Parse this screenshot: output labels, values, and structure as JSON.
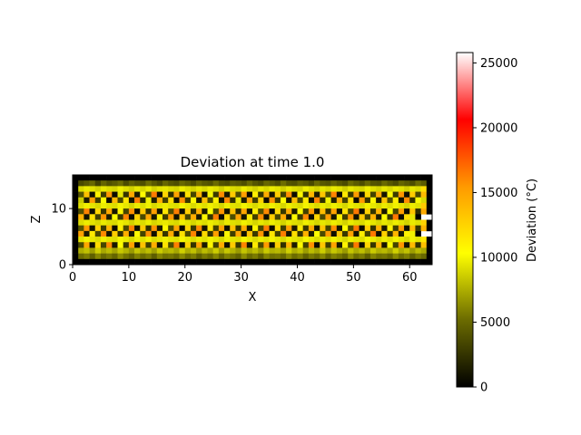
{
  "chart_data": {
    "type": "heatmap",
    "title": "Deviation at time 1.0",
    "xlabel": "X",
    "ylabel": "Z",
    "colorbar_label": "Deviation (°C)",
    "colormap": "hot",
    "colormap_stops": [
      "#000000",
      "#6b6b00",
      "#ffff00",
      "#ff9900",
      "#ff0000",
      "#ffffff"
    ],
    "xlim": [
      0,
      64
    ],
    "ylim": [
      0,
      16
    ],
    "xticks": [
      0,
      10,
      20,
      30,
      40,
      50,
      60
    ],
    "yticks": [
      0,
      10
    ],
    "color_range": [
      0,
      25800
    ],
    "colorbar_ticks": [
      0,
      5000,
      10000,
      15000,
      20000,
      25000
    ],
    "grid_size": {
      "nx": 64,
      "nz": 16
    },
    "border_value": 0,
    "pattern": "checkerboard deviation, high values (~8000–17000) alternating with near-zero cells in the interior",
    "values": [
      [
        0,
        0,
        0,
        0,
        0,
        0,
        0,
        0,
        0,
        0,
        0,
        0,
        0,
        0,
        0,
        0,
        0,
        0,
        0,
        0,
        0,
        0,
        0,
        0,
        0,
        0,
        0,
        0,
        0,
        0,
        0,
        0,
        0,
        0,
        0,
        0,
        0,
        0,
        0,
        0,
        0,
        0,
        0,
        0,
        0,
        0,
        0,
        0,
        0,
        0,
        0,
        0,
        0,
        0,
        0,
        0,
        0,
        0,
        0,
        0,
        0,
        0,
        0,
        0
      ],
      [
        0,
        3500,
        4200,
        5000,
        3200,
        4800,
        3900,
        4400,
        5100,
        3600,
        4700,
        4000,
        3800,
        5200,
        4300,
        3500,
        4900,
        4100,
        3700,
        5000,
        4400,
        3600,
        4800,
        4200,
        3900,
        5100,
        4000,
        3700,
        4600,
        4300,
        3800,
        5000,
        4100,
        3600,
        4900,
        4400,
        3700,
        5200,
        4000,
        3800,
        4700,
        4300,
        3500,
        5000,
        4200,
        3900,
        4800,
        4100,
        3600,
        5100,
        4400,
        3700,
        4900,
        4000,
        3800,
        5000,
        4200,
        3600,
        4800,
        4300,
        3700,
        5100,
        4400,
        0
      ],
      [
        0,
        9000,
        9600,
        9300,
        8800,
        9500,
        9100,
        8900,
        9700,
        9200,
        8700,
        9400,
        9000,
        9600,
        8800,
        9300,
        9500,
        9100,
        8900,
        9700,
        9200,
        8800,
        9400,
        9000,
        9600,
        9300,
        8700,
        9500,
        9100,
        8900,
        9700,
        9200,
        8800,
        9400,
        9000,
        9600,
        9300,
        8700,
        9500,
        9100,
        8900,
        9700,
        9200,
        8800,
        9400,
        9000,
        9600,
        9300,
        8700,
        9500,
        9100,
        8900,
        9700,
        9200,
        8800,
        9400,
        9000,
        9600,
        9300,
        8700,
        9500,
        9100,
        12000,
        0
      ],
      [
        0,
        4200,
        13500,
        800,
        11000,
        3000,
        15500,
        600,
        9500,
        2500,
        14800,
        1200,
        10500,
        3800,
        16500,
        500,
        12500,
        2200,
        15000,
        900,
        11800,
        3400,
        14200,
        700,
        10000,
        2800,
        16000,
        1100,
        13000,
        3600,
        15200,
        400,
        11200,
        2600,
        14500,
        1000,
        12800,
        3200,
        15800,
        600,
        10800,
        2400,
        14000,
        1300,
        13200,
        3900,
        16200,
        500,
        11500,
        2700,
        15400,
        800,
        12200,
        3300,
        14600,
        1000,
        10600,
        2900,
        15600,
        700,
        12900,
        3500,
        13800,
        0
      ],
      [
        0,
        8500,
        1200,
        15200,
        2800,
        10200,
        400,
        13800,
        3400,
        11600,
        900,
        16400,
        2100,
        9800,
        1500,
        14400,
        3100,
        12200,
        600,
        15800,
        2600,
        10600,
        1100,
        13400,
        3700,
        11000,
        800,
        16000,
        2300,
        9600,
        1400,
        14800,
        3000,
        12600,
        500,
        15600,
        2700,
        10400,
        1000,
        13600,
        3500,
        11400,
        700,
        16200,
        2200,
        9900,
        1600,
        14200,
        3200,
        12000,
        400,
        15400,
        2500,
        10800,
        1200,
        13200,
        3800,
        11200,
        900,
        15900,
        2400,
        10100,
        9000,
        0
      ],
      [
        0,
        9200,
        9800,
        9400,
        9000,
        9700,
        9300,
        9100,
        9900,
        9500,
        8900,
        9600,
        9200,
        9800,
        9000,
        9400,
        9700,
        9300,
        9100,
        9900,
        9500,
        9000,
        9600,
        9200,
        9800,
        9400,
        8900,
        9700,
        9300,
        9100,
        9900,
        9500,
        9000,
        9600,
        9200,
        9800,
        9400,
        8900,
        9700,
        9300,
        9100,
        9900,
        9500,
        9000,
        9600,
        9200,
        9800,
        9400,
        8900,
        9700,
        9300,
        9100,
        9900,
        9500,
        9000,
        9600,
        9200,
        9800,
        9400,
        8900,
        9700,
        9300,
        13000,
        0
      ],
      [
        0,
        3800,
        16200,
        700,
        12400,
        2600,
        14600,
        1100,
        10800,
        3300,
        15800,
        500,
        13000,
        2400,
        15200,
        900,
        11600,
        3700,
        16400,
        600,
        12800,
        2200,
        14200,
        1200,
        10400,
        3500,
        15600,
        800,
        13400,
        2000,
        14800,
        1000,
        11200,
        3900,
        16000,
        400,
        12200,
        2700,
        14400,
        1300,
        10600,
        3100,
        15400,
        700,
        13600,
        2300,
        15000,
        900,
        11800,
        3600,
        16600,
        500,
        12600,
        2500,
        14000,
        1100,
        10200,
        3400,
        15200,
        600,
        13200,
        2100,
        14600,
        0
      ],
      [
        0,
        14200,
        900,
        11800,
        3100,
        15600,
        1400,
        10400,
        2700,
        16200,
        600,
        12600,
        3500,
        14800,
        1100,
        11000,
        2900,
        15400,
        800,
        13200,
        3300,
        14400,
        1300,
        10800,
        2500,
        16400,
        500,
        12200,
        3700,
        15000,
        1000,
        11400,
        3100,
        15800,
        700,
        12800,
        3400,
        14600,
        1200,
        10600,
        2800,
        16000,
        600,
        12400,
        3600,
        15200,
        1000,
        11200,
        3000,
        15600,
        800,
        13000,
        3200,
        14200,
        1400,
        10200,
        2600,
        16600,
        500,
        12000,
        9500,
        0
      ],
      [
        0,
        9100,
        9700,
        9300,
        8900,
        9600,
        9200,
        9000,
        9800,
        9400,
        8800,
        9500,
        9100,
        9700,
        8900,
        9300,
        9600,
        9200,
        9000,
        9800,
        9400,
        8900,
        9500,
        9100,
        9700,
        9300,
        8800,
        9600,
        9200,
        9000,
        9800,
        9400,
        8900,
        9500,
        9100,
        9700,
        9300,
        8800,
        9600,
        9200,
        9000,
        9800,
        9400,
        8900,
        9500,
        9100,
        9700,
        9300,
        8800,
        9600,
        9200,
        9000,
        9800,
        9400,
        8900,
        9500,
        9100,
        9700,
        9300,
        8800,
        9600,
        9200,
        12500,
        0
      ],
      [
        0,
        4100,
        15400,
        1000,
        12600,
        2900,
        14000,
        600,
        11200,
        3600,
        16200,
        800,
        13000,
        2300,
        15600,
        1200,
        10600,
        3800,
        14800,
        500,
        12400,
        2700,
        16000,
        900,
        11600,
        3200,
        15000,
        700,
        13400,
        2500,
        14400,
        1100,
        10800,
        3500,
        16400,
        600,
        12000,
        3000,
        15200,
        1300,
        11400,
        2800,
        14600,
        800,
        13200,
        3300,
        15800,
        1000,
        10400,
        3700,
        16600,
        500,
        12800,
        2400,
        14200,
        1200,
        11000,
        3100,
        15400,
        700,
        13600,
        2600,
        14000,
        0
      ],
      [
        0,
        15000,
        1300,
        11400,
        3500,
        16000,
        900,
        12800,
        2200,
        14400,
        1200,
        10600,
        3300,
        15800,
        700,
        13000,
        2600,
        14600,
        1000,
        11800,
        3700,
        16200,
        500,
        12200,
        2400,
        15200,
        1100,
        10800,
        3000,
        14800,
        800,
        13400,
        2800,
        15600,
        600,
        11600,
        3200,
        16400,
        1000,
        12000,
        2500,
        14200,
        1400,
        10400,
        3600,
        15400,
        700,
        13200,
        2700,
        15000,
        900,
        11200,
        3400,
        16600,
        600,
        12600,
        2300,
        14000,
        1200,
        11000,
        9800,
        0
      ],
      [
        0,
        9300,
        9900,
        9500,
        9100,
        9800,
        9400,
        9200,
        10000,
        9600,
        9000,
        9700,
        9300,
        9900,
        9100,
        9500,
        9800,
        9400,
        9200,
        10000,
        9600,
        9100,
        9700,
        9300,
        9900,
        9500,
        9000,
        9800,
        9400,
        9200,
        10000,
        9600,
        9100,
        9700,
        9300,
        9900,
        9500,
        9000,
        9800,
        9400,
        9200,
        10000,
        9600,
        9100,
        9700,
        9300,
        9900,
        9500,
        9000,
        9800,
        9400,
        9200,
        10000,
        9600,
        9100,
        9700,
        9300,
        9900,
        9500,
        9000,
        9800,
        9400,
        11500,
        0
      ],
      [
        0,
        3600,
        14800,
        700,
        12200,
        3400,
        16000,
        1100,
        10400,
        2800,
        15200,
        500,
        13400,
        3000,
        14400,
        900,
        11800,
        3600,
        16400,
        700,
        12600,
        2500,
        15000,
        1200,
        10800,
        3200,
        14600,
        600,
        13000,
        2700,
        16200,
        1000,
        11400,
        3500,
        15400,
        800,
        12800,
        2300,
        14200,
        1300,
        10600,
        3100,
        15800,
        500,
        13200,
        2900,
        15000,
        1100,
        11000,
        3700,
        16600,
        600,
        12400,
        2600,
        14000,
        1000,
        10200,
        3300,
        15600,
        800,
        13800,
        2400,
        13500,
        0
      ],
      [
        0,
        7500,
        8200,
        6900,
        8600,
        7300,
        8000,
        7100,
        8400,
        7700,
        6800,
        8300,
        7400,
        8100,
        7000,
        8500,
        7600,
        7900,
        7200,
        8700,
        7500,
        8200,
        6900,
        8000,
        7300,
        8600,
        7100,
        8400,
        7700,
        6800,
        8300,
        7400,
        8100,
        7000,
        8500,
        7600,
        7900,
        7200,
        8700,
        7500,
        8200,
        6900,
        8000,
        7300,
        8600,
        7100,
        8400,
        7700,
        6800,
        8300,
        7400,
        8100,
        7000,
        8500,
        7600,
        7900,
        7200,
        8700,
        7500,
        8200,
        6900,
        8000,
        7300,
        0
      ],
      [
        0,
        5200,
        5800,
        4600,
        6100,
        5000,
        5600,
        4800,
        6300,
        5400,
        4700,
        5900,
        5100,
        5700,
        4500,
        6000,
        5300,
        5500,
        4900,
        6200,
        5200,
        5800,
        4600,
        5600,
        5000,
        6100,
        4800,
        5900,
        5400,
        4700,
        6300,
        5100,
        5700,
        4500,
        6000,
        5300,
        5500,
        4900,
        6200,
        5200,
        5800,
        4600,
        5600,
        5000,
        6100,
        4800,
        5900,
        5400,
        4700,
        6300,
        5100,
        5700,
        4500,
        6000,
        5300,
        5500,
        4900,
        6200,
        5200,
        5800,
        4600,
        5600,
        5000,
        0
      ],
      [
        0,
        0,
        0,
        0,
        0,
        0,
        0,
        0,
        0,
        0,
        0,
        0,
        0,
        0,
        0,
        0,
        0,
        0,
        0,
        0,
        0,
        0,
        0,
        0,
        0,
        0,
        0,
        0,
        0,
        0,
        0,
        0,
        0,
        0,
        0,
        0,
        0,
        0,
        0,
        0,
        0,
        0,
        0,
        0,
        0,
        0,
        0,
        0,
        0,
        0,
        0,
        0,
        0,
        0,
        0,
        0,
        0,
        0,
        0,
        0,
        0,
        0,
        0,
        0
      ]
    ]
  }
}
